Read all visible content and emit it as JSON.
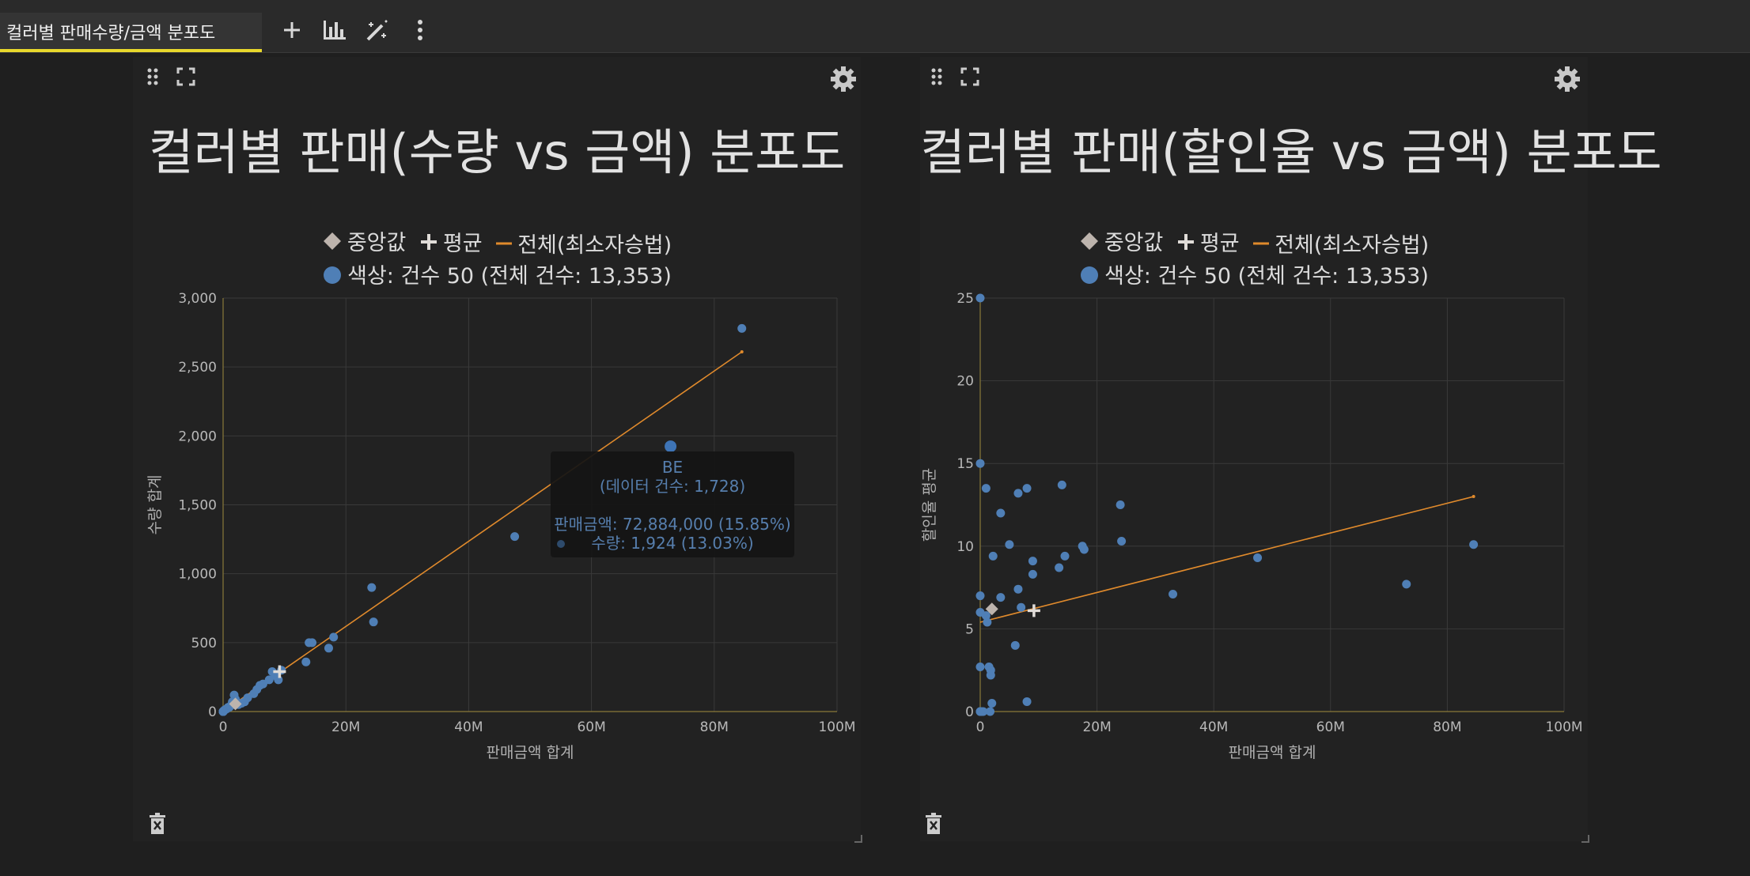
{
  "tab": {
    "title": "컬러별 판매수량/금액 분포도"
  },
  "colors": {
    "accent": "#e8d82c",
    "point": "#4f7fb6",
    "regression": "#e08a2c",
    "marker": "#bdb4ad"
  },
  "legend": {
    "median": "중앙값",
    "mean": "평균",
    "regression": "전체(최소자승법)",
    "series": "색상: 건수 50 (전체 건수: 13,353)"
  },
  "charts": [
    {
      "title": "컬러별 판매(수량 vs 금액) 분포도",
      "xlabel": "판매금액 합계",
      "ylabel": "수량 합계",
      "xticks": [
        "0",
        "20M",
        "40M",
        "60M",
        "80M",
        "100M"
      ],
      "yticks": [
        "0",
        "500",
        "1,000",
        "1,500",
        "2,000",
        "2,500",
        "3,000"
      ]
    },
    {
      "title": "컬러별 판매(할인율 vs 금액) 분포도",
      "xlabel": "판매금액 합계",
      "ylabel": "할인율 평균",
      "xticks": [
        "0",
        "20M",
        "40M",
        "60M",
        "80M",
        "100M"
      ],
      "yticks": [
        "0",
        "5",
        "10",
        "15",
        "20",
        "25"
      ]
    }
  ],
  "tooltip": {
    "name": "BE",
    "count": "(데이터 건수: 1,728)",
    "amount": "판매금액: 72,884,000 (15.85%)",
    "qty": "수량: 1,924 (13.03%)"
  },
  "chart_data": [
    {
      "type": "scatter",
      "title": "컬러별 판매(수량 vs 금액) 분포도",
      "xlabel": "판매금액 합계",
      "ylabel": "수량 합계",
      "xlim": [
        0,
        100000000
      ],
      "ylim": [
        0,
        3000
      ],
      "grid": true,
      "legend": "top-center",
      "series": [
        {
          "name": "색상",
          "x": [
            84500000,
            72884000,
            47500000,
            24200000,
            24500000,
            18000000,
            17200000,
            14500000,
            14000000,
            13500000,
            9500000,
            9000000,
            8500000,
            8000000,
            7500000,
            6500000,
            6000000,
            5500000,
            5000000,
            4000000,
            3500000,
            3000000,
            2500000,
            2000000,
            1800000,
            1500000,
            1200000,
            1000000,
            800000,
            600000,
            400000,
            200000,
            100000,
            50000,
            0,
            0,
            0,
            0,
            0,
            0
          ],
          "y": [
            2780,
            1924,
            1270,
            900,
            650,
            540,
            460,
            500,
            500,
            360,
            300,
            230,
            260,
            290,
            230,
            200,
            190,
            160,
            130,
            100,
            70,
            60,
            50,
            90,
            120,
            70,
            40,
            30,
            30,
            20,
            15,
            10,
            5,
            0,
            0,
            0,
            0,
            0,
            0,
            0
          ]
        }
      ],
      "median": {
        "x": 2000000,
        "y": 55
      },
      "mean": {
        "x": 9200000,
        "y": 290
      },
      "regression": {
        "x": [
          0,
          84500000
        ],
        "y": [
          0,
          2610
        ]
      }
    },
    {
      "type": "scatter",
      "title": "컬러별 판매(할인율 vs 금액) 분포도",
      "xlabel": "판매금액 합계",
      "ylabel": "할인율 평균",
      "xlim": [
        0,
        100000000
      ],
      "ylim": [
        0,
        25
      ],
      "grid": true,
      "legend": "top-center",
      "series": [
        {
          "name": "색상",
          "x": [
            0,
            0,
            0,
            0,
            0,
            0,
            0,
            1000000,
            1200000,
            1500000,
            1800000,
            2000000,
            1800000,
            1700000,
            2200000,
            3500000,
            3500000,
            5000000,
            6000000,
            6500000,
            6500000,
            7000000,
            8000000,
            8000000,
            9000000,
            9000000,
            13500000,
            14000000,
            14500000,
            17500000,
            17800000,
            24000000,
            24200000,
            33000000,
            47500000,
            73000000,
            84500000,
            200000,
            500000,
            1000000
          ],
          "y": [
            25,
            15,
            7,
            6,
            2.7,
            0,
            0,
            13.5,
            5.4,
            2.7,
            2.2,
            0.5,
            2.5,
            0,
            9.4,
            12,
            6.9,
            10.1,
            4,
            7.4,
            13.2,
            6.3,
            13.5,
            0.6,
            8.3,
            9.1,
            8.7,
            13.7,
            9.4,
            10,
            9.8,
            12.5,
            10.3,
            7.1,
            9.3,
            7.7,
            10.1,
            0,
            0,
            5.8
          ]
        }
      ],
      "median": {
        "x": 2000000,
        "y": 6.2
      },
      "mean": {
        "x": 9200000,
        "y": 6.1
      },
      "regression": {
        "x": [
          0,
          84500000
        ],
        "y": [
          5.4,
          13
        ]
      }
    }
  ]
}
